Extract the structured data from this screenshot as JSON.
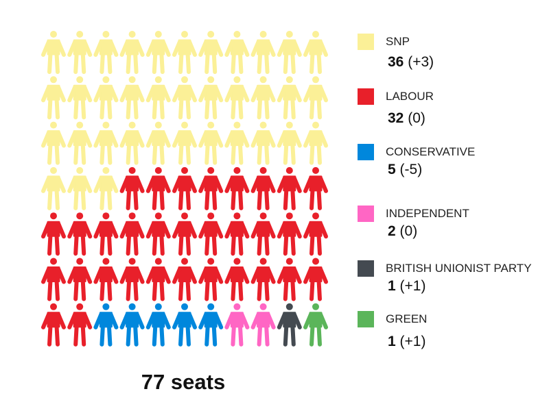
{
  "chart_data": {
    "type": "waffle",
    "total_label": "77 seats",
    "parties": [
      {
        "name": "SNP",
        "seats": 36,
        "change": "(+3)",
        "color": "#fbf097"
      },
      {
        "name": "LABOUR",
        "seats": 32,
        "change": "(0)",
        "color": "#e8202a"
      },
      {
        "name": "CONSERVATIVE",
        "seats": 5,
        "change": "(-5)",
        "color": "#0087dc"
      },
      {
        "name": "INDEPENDENT",
        "seats": 2,
        "change": "(0)",
        "color": "#ff66c4"
      },
      {
        "name": "BRITISH UNIONIST PARTY",
        "seats": 1,
        "change": "(+1)",
        "color": "#444a51"
      },
      {
        "name": "GREEN",
        "seats": 1,
        "change": "(+1)",
        "color": "#5bb55a"
      }
    ]
  }
}
